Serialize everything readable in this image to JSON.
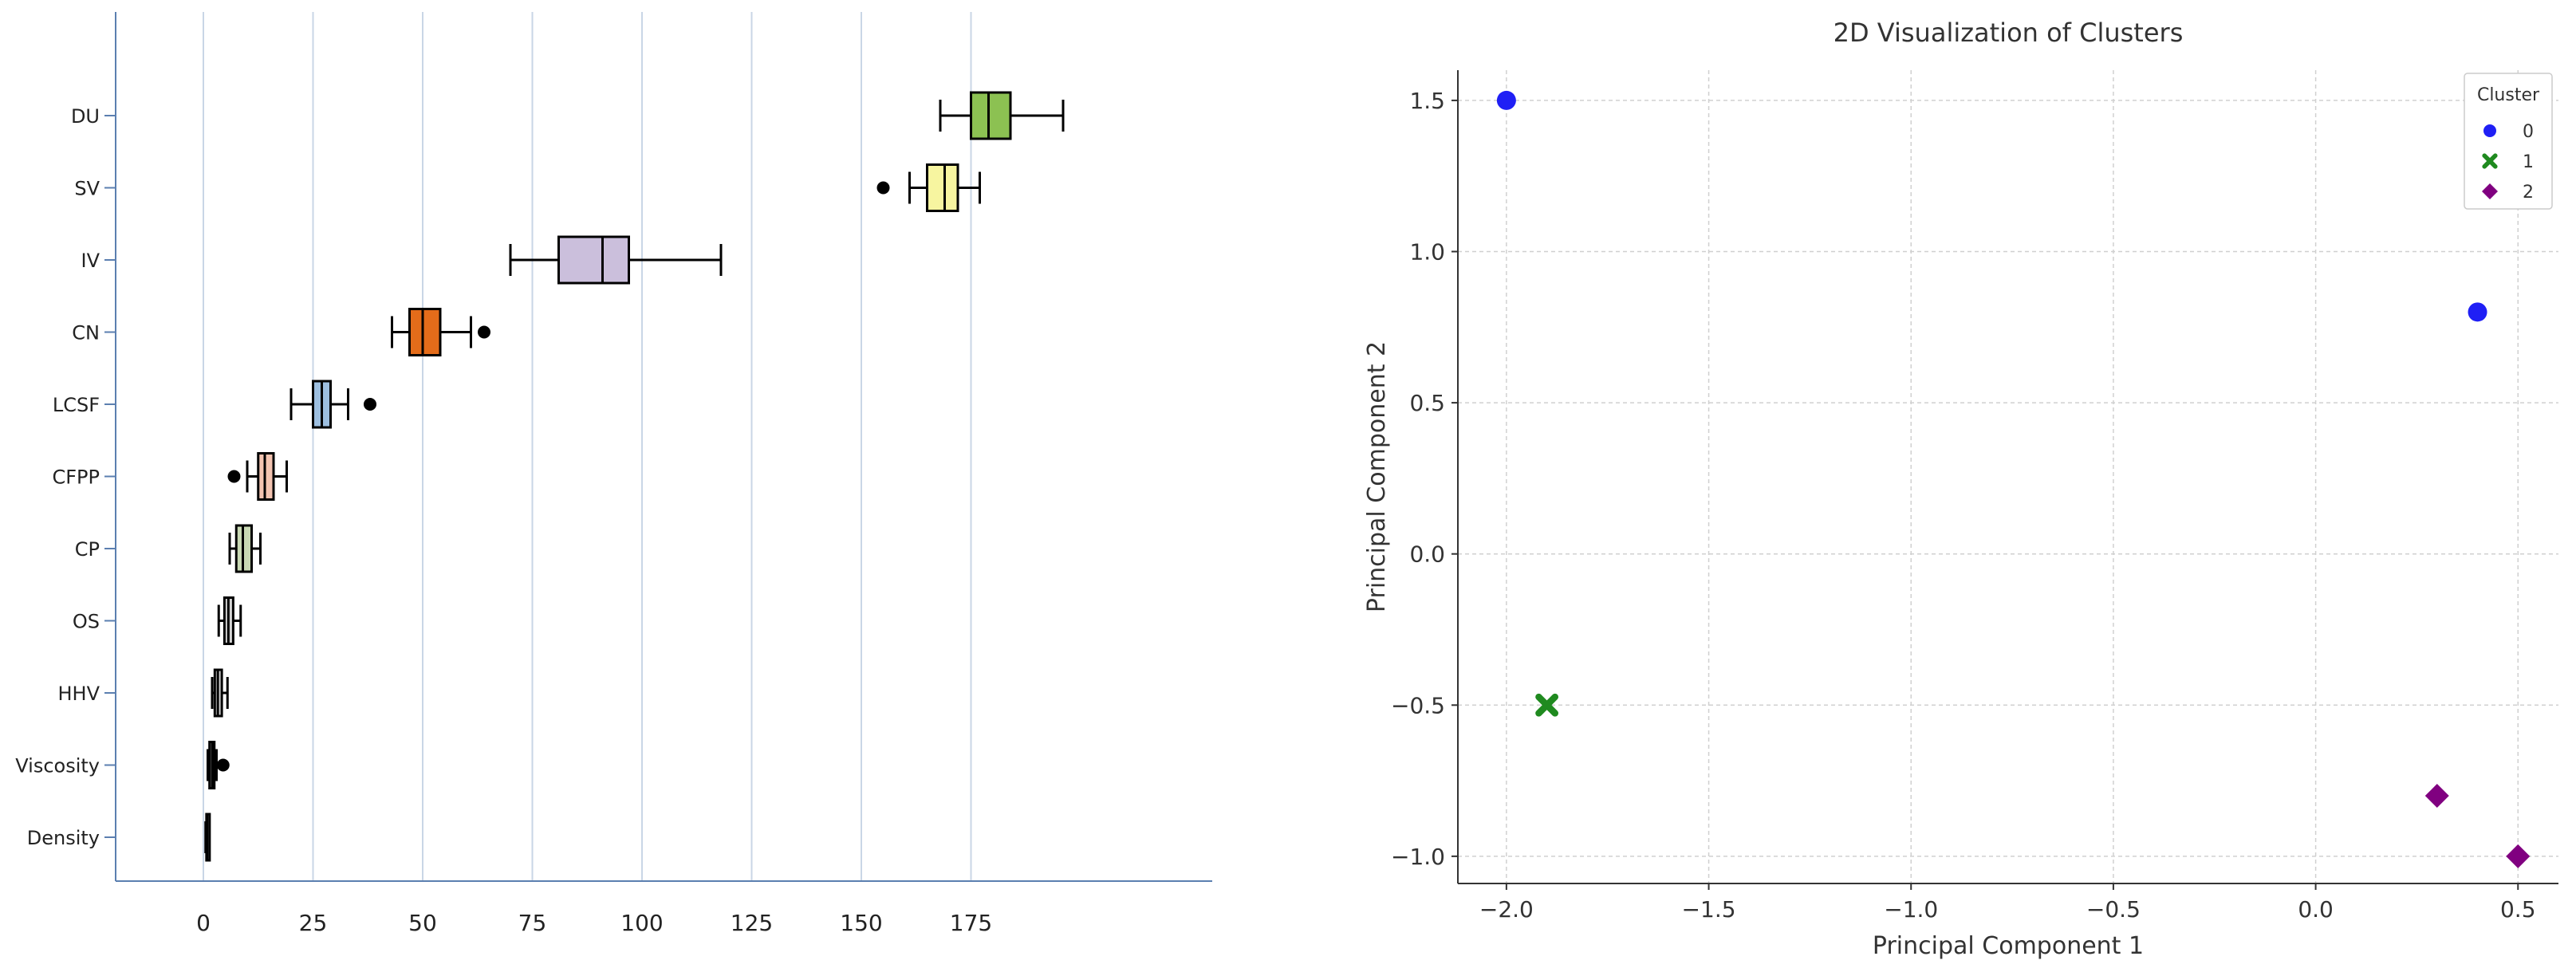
{
  "chart_data": [
    {
      "type": "box",
      "title": "",
      "xlabel": "",
      "ylabel": "",
      "xlim": [
        -20,
        230
      ],
      "x_ticks": [
        0,
        25,
        50,
        75,
        100,
        125,
        150,
        175
      ],
      "grid": "vertical",
      "categories": [
        "DU",
        "SV",
        "IV",
        "CN",
        "LCSF",
        "CFPP",
        "CP",
        "OS",
        "HHV",
        "Viscosity",
        "Density"
      ],
      "boxes": [
        {
          "label": "DU",
          "whisker_low": 168,
          "q1": 175,
          "median": 179,
          "q3": 184,
          "whisker_high": 196,
          "outliers": [],
          "color": "#8cc152"
        },
        {
          "label": "SV",
          "whisker_low": 161,
          "q1": 165,
          "median": 169,
          "q3": 172,
          "whisker_high": 177,
          "outliers": [
            155
          ],
          "color": "#f7f5a0"
        },
        {
          "label": "IV",
          "whisker_low": 70,
          "q1": 81,
          "median": 91,
          "q3": 97,
          "whisker_high": 118,
          "outliers": [],
          "color": "#cbbfdc"
        },
        {
          "label": "CN",
          "whisker_low": 43,
          "q1": 47,
          "median": 50,
          "q3": 54,
          "whisker_high": 61,
          "outliers": [
            64
          ],
          "color": "#e46c1a"
        },
        {
          "label": "LCSF",
          "whisker_low": 20,
          "q1": 25,
          "median": 27,
          "q3": 29,
          "whisker_high": 33,
          "outliers": [
            38
          ],
          "color": "#9dbfe0"
        },
        {
          "label": "CFPP",
          "whisker_low": 10,
          "q1": 12.5,
          "median": 14,
          "q3": 16,
          "whisker_high": 19,
          "outliers": [
            7
          ],
          "color": "#f3c4b1"
        },
        {
          "label": "CP",
          "whisker_low": 6,
          "q1": 7.5,
          "median": 9,
          "q3": 11,
          "whisker_high": 13,
          "outliers": [],
          "color": "#c9d9b4"
        },
        {
          "label": "OS",
          "whisker_low": 3.5,
          "q1": 4.8,
          "median": 5.7,
          "q3": 6.8,
          "whisker_high": 8.5,
          "outliers": [],
          "color": "#d4d4d4"
        },
        {
          "label": "HHV",
          "whisker_low": 2,
          "q1": 2.6,
          "median": 3.3,
          "q3": 4.2,
          "whisker_high": 5.5,
          "outliers": [],
          "color": "#d4d4d4"
        },
        {
          "label": "Viscosity",
          "whisker_low": 1,
          "q1": 1.4,
          "median": 2,
          "q3": 2.5,
          "whisker_high": 3,
          "outliers": [
            4.5
          ],
          "color": "#d4d4d4"
        },
        {
          "label": "Density",
          "whisker_low": 0.5,
          "q1": 0.7,
          "median": 0.88,
          "q3": 1.0,
          "whisker_high": 1.3,
          "outliers": [],
          "color": "#d4d4d4"
        }
      ]
    },
    {
      "type": "scatter",
      "title": "2D Visualization of Clusters",
      "xlabel": "Principal Component 1",
      "ylabel": "Principal Component 2",
      "xlim": [
        -2.12,
        0.6
      ],
      "ylim": [
        -1.09,
        1.6
      ],
      "x_ticks": [
        -2.0,
        -1.5,
        -1.0,
        -0.5,
        0.0,
        0.5
      ],
      "x_tick_labels": [
        "−2.0",
        "−1.5",
        "−1.0",
        "−0.5",
        "0.0",
        "0.5"
      ],
      "y_ticks": [
        1.5,
        1.0,
        0.5,
        0.0,
        -0.5,
        -1.0
      ],
      "y_tick_labels": [
        "1.5",
        "1.0",
        "0.5",
        "0.0",
        "−0.5",
        "−1.0"
      ],
      "grid": true,
      "legend": {
        "title": "Cluster",
        "placement": "top-right"
      },
      "series": [
        {
          "name": "0",
          "marker": "circle",
          "color": "#1f1ff5",
          "points": [
            {
              "x": -2.0,
              "y": 1.5
            },
            {
              "x": 0.4,
              "y": 0.8
            }
          ]
        },
        {
          "name": "1",
          "marker": "x",
          "color": "#1f8a1f",
          "points": [
            {
              "x": -1.9,
              "y": -0.5
            }
          ]
        },
        {
          "name": "2",
          "marker": "diamond",
          "color": "#800080",
          "points": [
            {
              "x": 0.3,
              "y": -0.8
            },
            {
              "x": 0.5,
              "y": -1.0
            }
          ]
        }
      ]
    }
  ]
}
